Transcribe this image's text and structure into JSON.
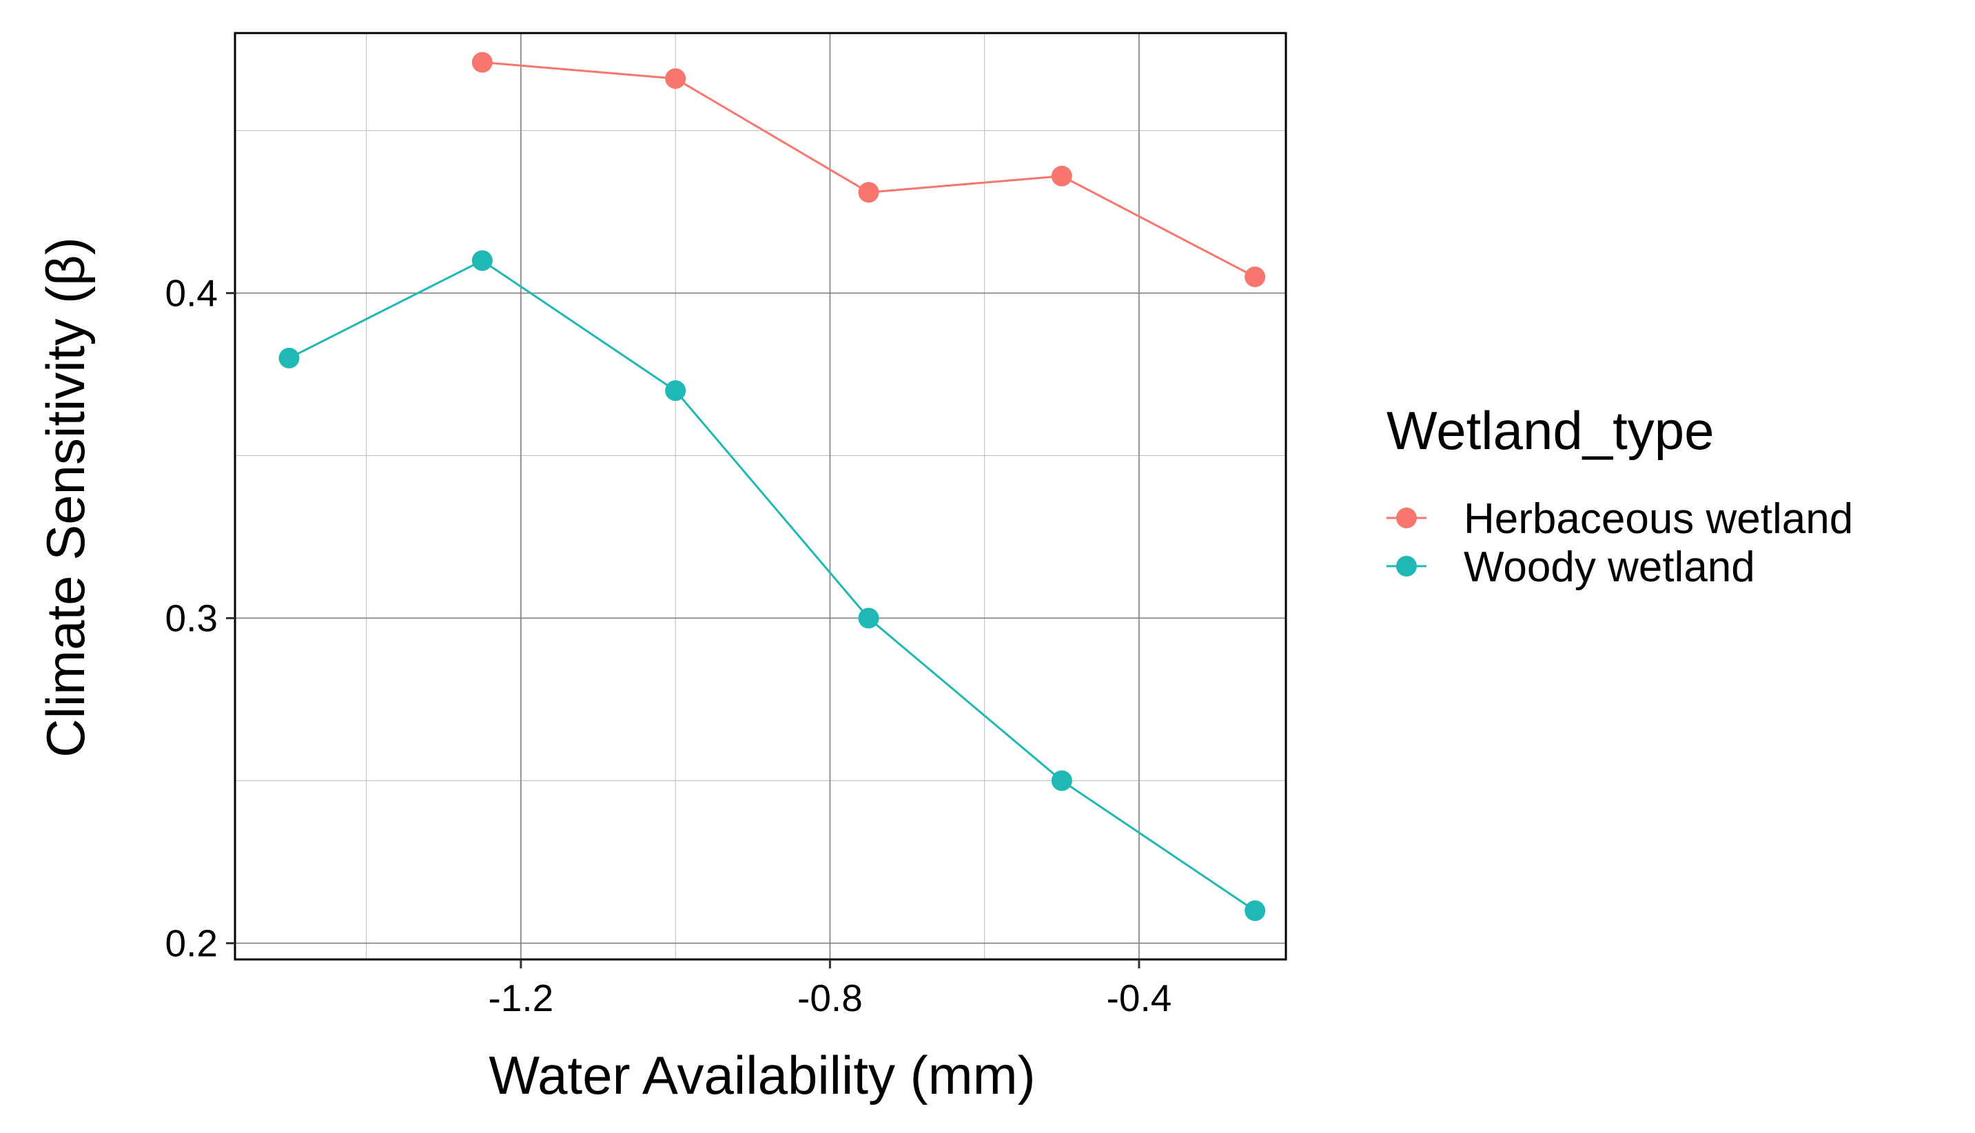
{
  "chart_data": {
    "type": "line",
    "title": "",
    "xlabel": "Water Availability (mm)",
    "ylabel": "Climate Sensitivity (β)",
    "xlim": [
      -1.57,
      -0.21
    ],
    "ylim": [
      0.195,
      0.48
    ],
    "x_ticks": [
      -1.2,
      -0.8,
      -0.4
    ],
    "x_tick_labels": [
      "-1.2",
      "-0.8",
      "-0.4"
    ],
    "x_minor_ticks": [
      -1.4,
      -1.0,
      -0.6
    ],
    "y_ticks": [
      0.2,
      0.3,
      0.4
    ],
    "y_tick_labels": [
      "0.2",
      "0.3",
      "0.4"
    ],
    "y_minor_ticks": [
      0.25,
      0.35,
      0.45
    ],
    "grid": true,
    "legend": {
      "title": "Wetland_type",
      "position": "right"
    },
    "series": [
      {
        "name": "Herbaceous wetland",
        "color": "#F8766D",
        "x": [
          -1.25,
          -1.0,
          -0.75,
          -0.5,
          -0.25
        ],
        "y": [
          0.471,
          0.466,
          0.431,
          0.436,
          0.405
        ]
      },
      {
        "name": "Woody wetland",
        "color": "#1FB8B4",
        "x": [
          -1.5,
          -1.25,
          -1.0,
          -0.75,
          -0.5,
          -0.25
        ],
        "y": [
          0.38,
          0.41,
          0.37,
          0.3,
          0.25,
          0.21
        ]
      }
    ]
  }
}
